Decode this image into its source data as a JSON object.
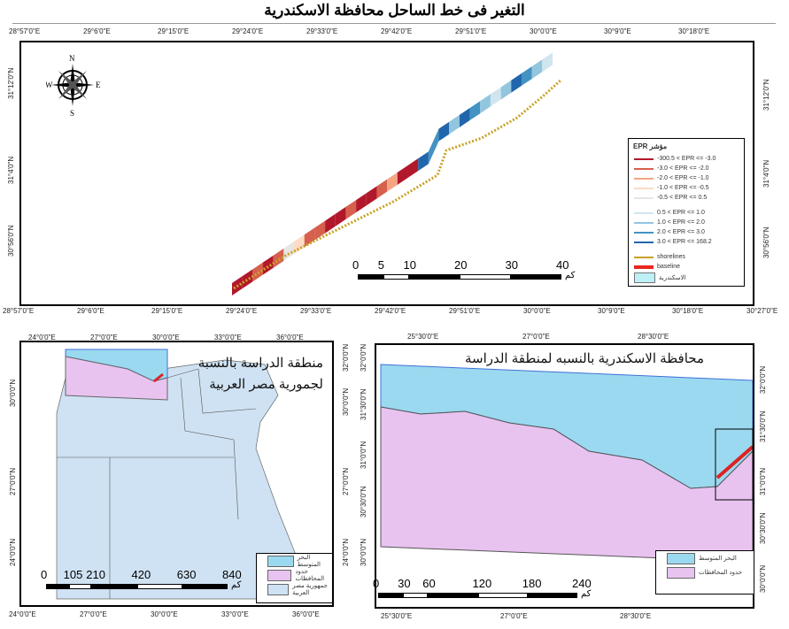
{
  "title": "التغير فى خط الساحل محافظة الاسكندرية",
  "main_map": {
    "top_ticks": [
      "28°57'0\"E",
      "29°6'0\"E",
      "29°15'0\"E",
      "29°24'0\"E",
      "29°33'0\"E",
      "29°42'0\"E",
      "29°51'0\"E",
      "30°0'0\"E",
      "30°9'0\"E",
      "30°18'0\"E"
    ],
    "bottom_ticks": [
      "28°57'0\"E",
      "29°6'0\"E",
      "29°15'0\"E",
      "29°24'0\"E",
      "29°33'0\"E",
      "29°42'0\"E",
      "29°51'0\"E",
      "30°0'0\"E",
      "30°9'0\"E",
      "30°18'0\"E",
      "30°27'0\"E"
    ],
    "left_ticks": [
      "31°12'0\"N",
      "31°4'0\"N",
      "30°56'0\"N"
    ],
    "right_ticks": [
      "31°12'0\"N",
      "31°4'0\"N",
      "30°56'0\"N"
    ],
    "north_arrow": {
      "n": "N",
      "s": "S",
      "e": "E",
      "w": "W"
    },
    "scale": {
      "labels": [
        "0",
        "5",
        "10",
        "20",
        "30",
        "40"
      ],
      "unit": "كم"
    },
    "legend": {
      "title": "EPR مؤشر",
      "classes": [
        {
          "label": "-300.5 < EPR <= -3.0",
          "color": "#b2182b"
        },
        {
          "label": "-3.0 < EPR <= -2.0",
          "color": "#d6604d"
        },
        {
          "label": "-2.0 < EPR <= -1.0",
          "color": "#f4a582"
        },
        {
          "label": "-1.0 < EPR <= -0.5",
          "color": "#fddbc7"
        },
        {
          "label": "-0.5 < EPR <= 0.5",
          "color": "#e6e6e6"
        },
        {
          "label": "0.5 < EPR <= 1.0",
          "color": "#d1e5f0"
        },
        {
          "label": "1.0 < EPR <= 2.0",
          "color": "#92c5de"
        },
        {
          "label": "2.0 < EPR <= 3.0",
          "color": "#4393c3"
        },
        {
          "label": "3.0 < EPR <= 168.2",
          "color": "#2166ac"
        }
      ],
      "shorelines": "shorelines",
      "baseline": "baseline",
      "area": "الاسكندرية"
    }
  },
  "egypt_map": {
    "title_line1": "منطقة الدراسة بالنسبة",
    "title_line2": "لجمورية مصر العربية",
    "top_ticks": [
      "24°0'0\"E",
      "27°0'0\"E",
      "30°0'0\"E",
      "33°0'0\"E",
      "36°0'0\"E"
    ],
    "bottom_ticks": [
      "24°0'0\"E",
      "27°0'0\"E",
      "30°0'0\"E",
      "33°0'0\"E",
      "36°0'0\"E"
    ],
    "left_ticks": [
      "30°0'0\"N",
      "27°0'0\"N",
      "24°0'0\"N"
    ],
    "right_ticks": [
      "32°0'0\"N",
      "30°0'0\"N",
      "27°0'0\"N",
      "24°0'0\"N"
    ],
    "scale": {
      "labels": [
        "0",
        "105",
        "210",
        "420",
        "630",
        "840"
      ],
      "unit": "كم"
    },
    "legend": [
      {
        "label": "البحر المتوسط",
        "color": "#9bd9f0"
      },
      {
        "label": "حدود المحافظات",
        "color": "#e8c3f0"
      },
      {
        "label": "جمهورية مصر العربية",
        "color": "#cfe2f3"
      }
    ]
  },
  "alex_map": {
    "title": "محافظة الاسكندرية بالنسبه لمنطقة الدراسة",
    "top_ticks": [
      "25°30'0\"E",
      "27°0'0\"E",
      "28°30'0\"E"
    ],
    "bottom_ticks": [
      "25°30'0\"E",
      "27°0'0\"E",
      "28°30'0\"E"
    ],
    "left_ticks": [
      "32°0'0\"N",
      "31°30'0\"N",
      "31°0'0\"N",
      "30°30'0\"N",
      "30°0'0\"N"
    ],
    "right_ticks": [
      "32°0'0\"N",
      "31°30'0\"N",
      "31°0'0\"N",
      "30°30'0\"N",
      "30°0'0\"N"
    ],
    "scale": {
      "labels": [
        "0",
        "30",
        "60",
        "120",
        "180",
        "240"
      ],
      "unit": "كم"
    },
    "legend": [
      {
        "label": "البحر المتوسط",
        "color": "#9bd9f0"
      },
      {
        "label": "حدود المحافظات",
        "color": "#e8c3f0"
      }
    ]
  }
}
